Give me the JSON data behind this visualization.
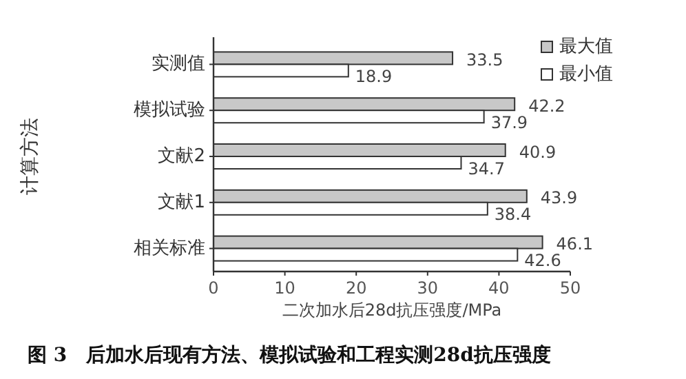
{
  "chart_data": {
    "type": "bar",
    "orientation": "horizontal",
    "title": "图 3　后加水后现有方法、模拟试验和工程实测28d抗压强度",
    "xlabel": "二次加水后28d抗压强度/MPa",
    "ylabel": "计算方法",
    "categories": [
      "实测值",
      "模拟试验",
      "文献2",
      "文献1",
      "相关标准"
    ],
    "series": [
      {
        "name": "最大值",
        "color": "#c8c8c8",
        "values": [
          33.5,
          42.2,
          40.9,
          43.9,
          46.1
        ]
      },
      {
        "name": "最小值",
        "color": "#ffffff",
        "values": [
          18.9,
          37.9,
          34.7,
          38.4,
          42.6
        ]
      }
    ],
    "xlim": [
      0,
      50
    ],
    "xticks": [
      0,
      10,
      20,
      30,
      40,
      50
    ],
    "data_labels": true,
    "legend": "top right",
    "grid": false
  }
}
